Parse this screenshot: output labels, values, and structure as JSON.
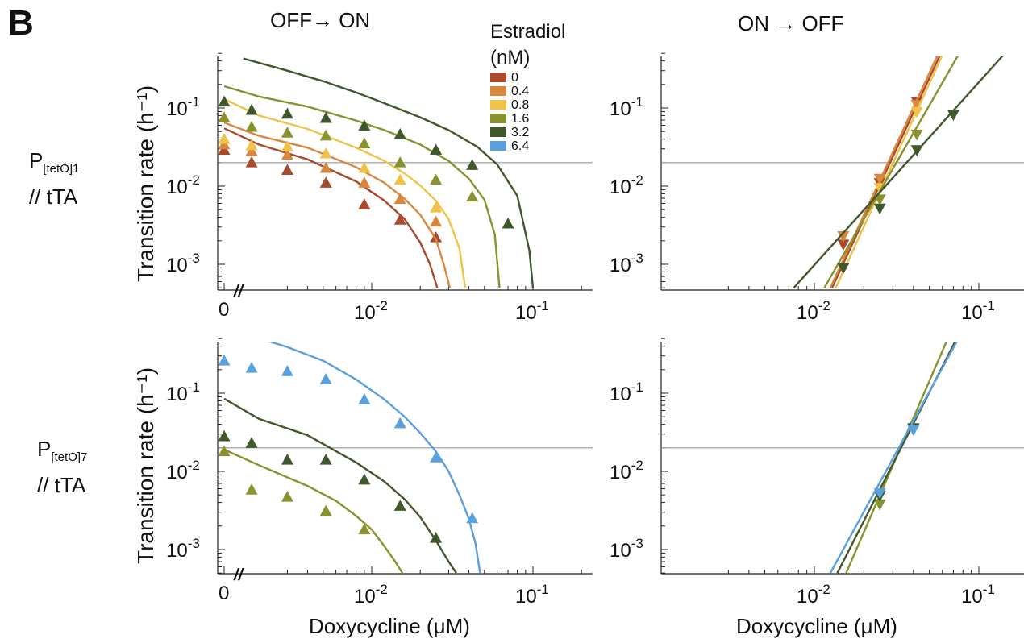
{
  "figure": {
    "panel_letter": "B",
    "col_titles": [
      "OFF→ ON",
      "ON → OFF"
    ],
    "rows": [
      {
        "label_main": "P",
        "label_sub": "[tetO]1",
        "label_line2": "// tTA"
      },
      {
        "label_main": "P",
        "label_sub": "[tetO]7",
        "label_line2": "// tTA"
      }
    ],
    "ylabel": "Transition rate (h⁻¹)",
    "xlabel": "Doxycycline (μM)",
    "legend": {
      "title_line1": "Estradiol",
      "title_line2": "(nM)",
      "items": [
        "0",
        "0.4",
        "0.8",
        "1.6",
        "3.2",
        "6.4"
      ]
    },
    "colors": {
      "0": "#a84a2b",
      "0.4": "#d9873f",
      "0.8": "#f0c24a",
      "1.6": "#8a922f",
      "3.2": "#41572c",
      "6.4": "#5a9fde",
      "threshold_line": "#999999"
    },
    "tick_labels": {
      "zero": "0",
      "break_mark": "//"
    }
  },
  "chart_data": [
    {
      "id": "tetO1-off-to-on",
      "type": "line",
      "marker": "triangle-up",
      "x_scale": "log-with-zero",
      "y_scale": "log",
      "xlim": [
        0.0025,
        0.25
      ],
      "ylim": [
        0.0005,
        0.55
      ],
      "x_ticks": [
        "0",
        "10^-2",
        "10^-1"
      ],
      "y_ticks": [
        "10^-3",
        "10^-2",
        "10^-1"
      ],
      "threshold": 0.02,
      "series": [
        {
          "name": "0",
          "points": [
            [
              0,
              0.029
            ],
            [
              0.0018,
              0.02
            ],
            [
              0.003,
              0.016
            ],
            [
              0.0052,
              0.011
            ],
            [
              0.009,
              0.0058
            ],
            [
              0.015,
              0.0037
            ],
            [
              0.025,
              0.0022
            ]
          ],
          "fit": [
            [
              0,
              0.055
            ],
            [
              0.002,
              0.034
            ],
            [
              0.004,
              0.022
            ],
            [
              0.008,
              0.0115
            ],
            [
              0.012,
              0.0065
            ],
            [
              0.016,
              0.0038
            ],
            [
              0.02,
              0.0019
            ],
            [
              0.023,
              0.001
            ],
            [
              0.0255,
              0.0005
            ]
          ]
        },
        {
          "name": "0.4",
          "points": [
            [
              0,
              0.034
            ],
            [
              0.0018,
              0.028
            ],
            [
              0.003,
              0.025
            ],
            [
              0.0052,
              0.017
            ],
            [
              0.009,
              0.011
            ],
            [
              0.015,
              0.0068
            ],
            [
              0.025,
              0.0035
            ]
          ],
          "fit": [
            [
              0,
              0.065
            ],
            [
              0.002,
              0.044
            ],
            [
              0.004,
              0.031
            ],
            [
              0.008,
              0.0175
            ],
            [
              0.012,
              0.011
            ],
            [
              0.016,
              0.0069
            ],
            [
              0.02,
              0.0043
            ],
            [
              0.025,
              0.0021
            ],
            [
              0.028,
              0.001
            ],
            [
              0.0305,
              0.0005
            ]
          ]
        },
        {
          "name": "0.8",
          "points": [
            [
              0,
              0.04
            ],
            [
              0.0018,
              0.033
            ],
            [
              0.003,
              0.032
            ],
            [
              0.0052,
              0.026
            ],
            [
              0.009,
              0.017
            ],
            [
              0.015,
              0.012
            ],
            [
              0.025,
              0.0053
            ]
          ],
          "fit": [
            [
              0,
              0.13
            ],
            [
              0.002,
              0.08
            ],
            [
              0.004,
              0.054
            ],
            [
              0.008,
              0.031
            ],
            [
              0.012,
              0.021
            ],
            [
              0.016,
              0.0145
            ],
            [
              0.02,
              0.0102
            ],
            [
              0.025,
              0.0065
            ],
            [
              0.03,
              0.0038
            ],
            [
              0.035,
              0.0016
            ],
            [
              0.038,
              0.0005
            ]
          ]
        },
        {
          "name": "1.6",
          "points": [
            [
              0,
              0.075
            ],
            [
              0.0018,
              0.057
            ],
            [
              0.003,
              0.048
            ],
            [
              0.0052,
              0.044
            ],
            [
              0.009,
              0.035
            ],
            [
              0.015,
              0.02
            ],
            [
              0.025,
              0.012
            ],
            [
              0.042,
              0.0073
            ]
          ],
          "fit": [
            [
              0,
              0.19
            ],
            [
              0.002,
              0.14
            ],
            [
              0.004,
              0.104
            ],
            [
              0.008,
              0.069
            ],
            [
              0.012,
              0.052
            ],
            [
              0.02,
              0.034
            ],
            [
              0.03,
              0.021
            ],
            [
              0.04,
              0.0125
            ],
            [
              0.05,
              0.0067
            ],
            [
              0.058,
              0.0024
            ],
            [
              0.062,
              0.0005
            ]
          ]
        },
        {
          "name": "3.2",
          "points": [
            [
              0,
              0.12
            ],
            [
              0.0018,
              0.094
            ],
            [
              0.003,
              0.084
            ],
            [
              0.0052,
              0.074
            ],
            [
              0.009,
              0.059
            ],
            [
              0.015,
              0.046
            ],
            [
              0.025,
              0.029
            ],
            [
              0.042,
              0.0185
            ],
            [
              0.07,
              0.0033
            ]
          ],
          "fit": [
            [
              0.0016,
              0.43
            ],
            [
              0.003,
              0.3
            ],
            [
              0.005,
              0.22
            ],
            [
              0.008,
              0.158
            ],
            [
              0.012,
              0.115
            ],
            [
              0.02,
              0.076
            ],
            [
              0.03,
              0.052
            ],
            [
              0.045,
              0.032
            ],
            [
              0.06,
              0.019
            ],
            [
              0.08,
              0.0075
            ],
            [
              0.095,
              0.0015
            ],
            [
              0.1,
              0.0005
            ]
          ]
        }
      ]
    },
    {
      "id": "tetO1-on-to-off",
      "type": "line",
      "marker": "triangle-down",
      "x_scale": "log",
      "y_scale": "log",
      "xlim": [
        0.0025,
        0.25
      ],
      "ylim": [
        0.0005,
        0.55
      ],
      "x_ticks": [
        "10^-2",
        "10^-1"
      ],
      "y_ticks": [
        "10^-3",
        "10^-2",
        "10^-1"
      ],
      "threshold": 0.02,
      "series": [
        {
          "name": "0",
          "points": [
            [
              0.015,
              0.0018
            ],
            [
              0.025,
              0.011
            ],
            [
              0.042,
              0.12
            ]
          ],
          "fit": [
            [
              0.0128,
              0.0005
            ],
            [
              0.06,
              0.55
            ]
          ]
        },
        {
          "name": "0.4",
          "points": [
            [
              0.015,
              0.0023
            ],
            [
              0.025,
              0.0125
            ],
            [
              0.042,
              0.11
            ]
          ],
          "fit": [
            [
              0.0125,
              0.0005
            ],
            [
              0.058,
              0.55
            ]
          ]
        },
        {
          "name": "0.8",
          "points": [
            [
              0.025,
              0.0095
            ],
            [
              0.042,
              0.09
            ]
          ],
          "fit": [
            [
              0.0135,
              0.0005
            ],
            [
              0.062,
              0.55
            ]
          ]
        },
        {
          "name": "1.6",
          "points": [
            [
              0.025,
              0.0068
            ],
            [
              0.042,
              0.046
            ]
          ],
          "fit": [
            [
              0.0115,
              0.0005
            ],
            [
              0.078,
              0.55
            ]
          ]
        },
        {
          "name": "3.2",
          "points": [
            [
              0.015,
              0.0009
            ],
            [
              0.025,
              0.0052
            ],
            [
              0.042,
              0.029
            ],
            [
              0.07,
              0.082
            ]
          ],
          "fit": [
            [
              0.0075,
              0.0005
            ],
            [
              0.15,
              0.55
            ]
          ]
        }
      ]
    },
    {
      "id": "tetO7-off-to-on",
      "type": "line",
      "marker": "triangle-up",
      "x_scale": "log-with-zero",
      "y_scale": "log",
      "xlim": [
        0.0025,
        0.25
      ],
      "ylim": [
        0.0005,
        0.55
      ],
      "x_ticks": [
        "0",
        "10^-2",
        "10^-1"
      ],
      "y_ticks": [
        "10^-3",
        "10^-2",
        "10^-1"
      ],
      "threshold": 0.02,
      "series": [
        {
          "name": "1.6",
          "points": [
            [
              0,
              0.018
            ],
            [
              0.0018,
              0.0058
            ],
            [
              0.003,
              0.0047
            ],
            [
              0.0052,
              0.0031
            ],
            [
              0.009,
              0.0018
            ]
          ],
          "fit": [
            [
              0,
              0.019
            ],
            [
              0.002,
              0.012
            ],
            [
              0.004,
              0.0065
            ],
            [
              0.006,
              0.0042
            ],
            [
              0.008,
              0.0027
            ],
            [
              0.01,
              0.0018
            ],
            [
              0.012,
              0.0011
            ],
            [
              0.014,
              0.0007
            ],
            [
              0.0155,
              0.0005
            ]
          ]
        },
        {
          "name": "3.2",
          "points": [
            [
              0,
              0.028
            ],
            [
              0.0018,
              0.023
            ],
            [
              0.003,
              0.014
            ],
            [
              0.0052,
              0.014
            ],
            [
              0.009,
              0.0078
            ],
            [
              0.015,
              0.0036
            ],
            [
              0.025,
              0.0014
            ]
          ],
          "fit": [
            [
              0,
              0.085
            ],
            [
              0.002,
              0.047
            ],
            [
              0.004,
              0.029
            ],
            [
              0.008,
              0.013
            ],
            [
              0.012,
              0.0074
            ],
            [
              0.016,
              0.0044
            ],
            [
              0.02,
              0.0026
            ],
            [
              0.025,
              0.0013
            ],
            [
              0.03,
              0.0007
            ],
            [
              0.0335,
              0.0005
            ]
          ]
        },
        {
          "name": "6.4",
          "points": [
            [
              0,
              0.26
            ],
            [
              0.0018,
              0.21
            ],
            [
              0.003,
              0.19
            ],
            [
              0.0052,
              0.15
            ],
            [
              0.009,
              0.083
            ],
            [
              0.015,
              0.041
            ],
            [
              0.025,
              0.015
            ],
            [
              0.042,
              0.0025
            ]
          ],
          "fit": [
            [
              0.0018,
              0.54
            ],
            [
              0.003,
              0.39
            ],
            [
              0.005,
              0.26
            ],
            [
              0.008,
              0.15
            ],
            [
              0.012,
              0.083
            ],
            [
              0.016,
              0.05
            ],
            [
              0.02,
              0.031
            ],
            [
              0.025,
              0.018
            ],
            [
              0.03,
              0.01
            ],
            [
              0.035,
              0.005
            ],
            [
              0.04,
              0.0025
            ],
            [
              0.044,
              0.0012
            ],
            [
              0.047,
              0.0005
            ]
          ]
        }
      ]
    },
    {
      "id": "tetO7-on-to-off",
      "type": "line",
      "marker": "triangle-down",
      "x_scale": "log",
      "y_scale": "log",
      "xlim": [
        0.0025,
        0.25
      ],
      "ylim": [
        0.0005,
        0.55
      ],
      "x_ticks": [
        "10^-2",
        "10^-1"
      ],
      "y_ticks": [
        "10^-3",
        "10^-2",
        "10^-1"
      ],
      "threshold": 0.02,
      "series": [
        {
          "name": "1.6",
          "points": [
            [
              0.025,
              0.0038
            ],
            [
              0.04,
              0.035
            ]
          ],
          "fit": [
            [
              0.0156,
              0.0005
            ],
            [
              0.066,
              0.55
            ]
          ]
        },
        {
          "name": "3.2",
          "points": [
            [
              0.025,
              0.0049
            ],
            [
              0.04,
              0.036
            ]
          ],
          "fit": [
            [
              0.0138,
              0.0005
            ],
            [
              0.075,
              0.55
            ]
          ]
        },
        {
          "name": "6.4",
          "points": [
            [
              0.025,
              0.0053
            ],
            [
              0.04,
              0.034
            ]
          ],
          "fit": [
            [
              0.0125,
              0.0005
            ],
            [
              0.077,
              0.55
            ]
          ]
        }
      ]
    }
  ]
}
